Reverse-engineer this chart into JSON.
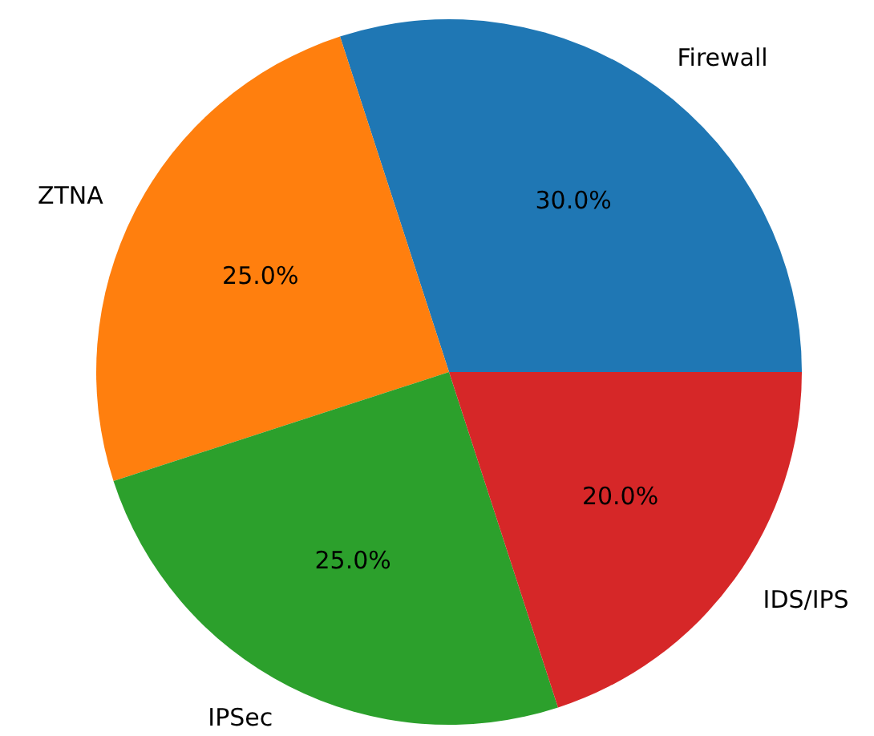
{
  "chart_data": {
    "type": "pie",
    "categories": [
      "Firewall",
      "ZTNA",
      "IPSec",
      "IDS/IPS"
    ],
    "values": [
      30,
      25,
      25,
      20
    ],
    "colors": [
      "#1f77b4",
      "#ff7f0e",
      "#2ca02c",
      "#d62728"
    ],
    "value_labels": [
      "30.0%",
      "25.0%",
      "25.0%",
      "20.0%"
    ]
  }
}
